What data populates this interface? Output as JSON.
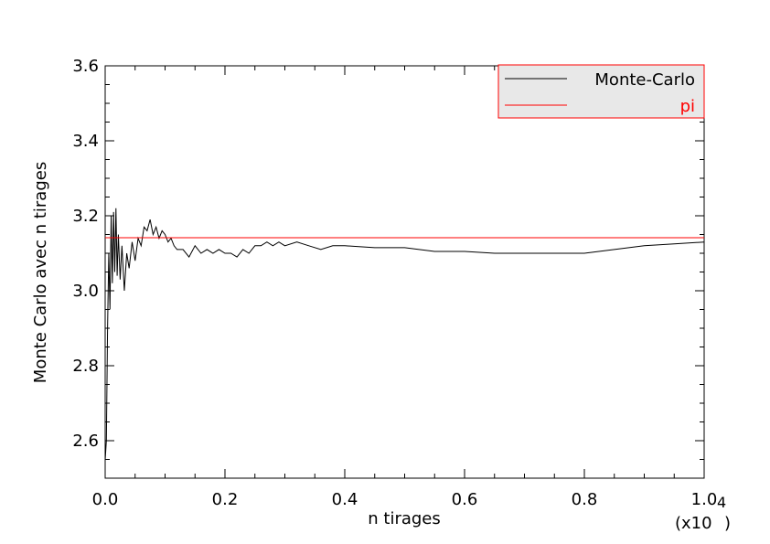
{
  "chart_data": {
    "type": "line",
    "xlabel": "n tirages",
    "ylabel": "Monte Carlo avec n tirages",
    "x_scale_note": "(x10",
    "x_scale_exponent": "4",
    "x_scale_close": ")",
    "xlim": [
      0,
      10000
    ],
    "ylim": [
      2.5,
      3.6
    ],
    "x_ticks": [
      {
        "value": 0,
        "label": "0.0"
      },
      {
        "value": 2000,
        "label": "0.2"
      },
      {
        "value": 4000,
        "label": "0.4"
      },
      {
        "value": 6000,
        "label": "0.6"
      },
      {
        "value": 8000,
        "label": "0.8"
      },
      {
        "value": 10000,
        "label": "1.0"
      }
    ],
    "y_ticks": [
      {
        "value": 2.6,
        "label": "2.6"
      },
      {
        "value": 2.8,
        "label": "2.8"
      },
      {
        "value": 3.0,
        "label": "3.0"
      },
      {
        "value": 3.2,
        "label": "3.2"
      },
      {
        "value": 3.4,
        "label": "3.4"
      },
      {
        "value": 3.6,
        "label": "3.6"
      }
    ],
    "legend_placement": "top-right",
    "grid": false,
    "series": [
      {
        "name": "Monte-Carlo",
        "color": "#000000",
        "points": [
          [
            1,
            2.55
          ],
          [
            20,
            2.6
          ],
          [
            40,
            2.9
          ],
          [
            60,
            3.1
          ],
          [
            80,
            2.95
          ],
          [
            100,
            3.2
          ],
          [
            120,
            3.02
          ],
          [
            140,
            3.21
          ],
          [
            160,
            3.05
          ],
          [
            180,
            3.22
          ],
          [
            200,
            3.04
          ],
          [
            220,
            3.15
          ],
          [
            250,
            3.03
          ],
          [
            280,
            3.12
          ],
          [
            320,
            3.0
          ],
          [
            360,
            3.1
          ],
          [
            400,
            3.06
          ],
          [
            450,
            3.13
          ],
          [
            500,
            3.08
          ],
          [
            550,
            3.14
          ],
          [
            600,
            3.12
          ],
          [
            650,
            3.17
          ],
          [
            700,
            3.16
          ],
          [
            750,
            3.19
          ],
          [
            800,
            3.15
          ],
          [
            850,
            3.17
          ],
          [
            900,
            3.14
          ],
          [
            950,
            3.16
          ],
          [
            1000,
            3.15
          ],
          [
            1050,
            3.13
          ],
          [
            1100,
            3.14
          ],
          [
            1150,
            3.12
          ],
          [
            1200,
            3.11
          ],
          [
            1300,
            3.11
          ],
          [
            1400,
            3.09
          ],
          [
            1500,
            3.12
          ],
          [
            1600,
            3.1
          ],
          [
            1700,
            3.11
          ],
          [
            1800,
            3.1
          ],
          [
            1900,
            3.11
          ],
          [
            2000,
            3.1
          ],
          [
            2100,
            3.1
          ],
          [
            2200,
            3.09
          ],
          [
            2300,
            3.11
          ],
          [
            2400,
            3.1
          ],
          [
            2500,
            3.12
          ],
          [
            2600,
            3.12
          ],
          [
            2700,
            3.13
          ],
          [
            2800,
            3.12
          ],
          [
            2900,
            3.13
          ],
          [
            3000,
            3.12
          ],
          [
            3200,
            3.13
          ],
          [
            3400,
            3.12
          ],
          [
            3600,
            3.11
          ],
          [
            3800,
            3.12
          ],
          [
            4000,
            3.12
          ],
          [
            4500,
            3.115
          ],
          [
            5000,
            3.115
          ],
          [
            5500,
            3.105
          ],
          [
            6000,
            3.105
          ],
          [
            6500,
            3.1
          ],
          [
            7000,
            3.1
          ],
          [
            7500,
            3.1
          ],
          [
            8000,
            3.1
          ],
          [
            8500,
            3.11
          ],
          [
            9000,
            3.12
          ],
          [
            9500,
            3.125
          ],
          [
            10000,
            3.13
          ]
        ]
      },
      {
        "name": "pi",
        "color": "#ff0000",
        "points": [
          [
            0,
            3.14159
          ],
          [
            10000,
            3.14159
          ]
        ]
      }
    ]
  }
}
